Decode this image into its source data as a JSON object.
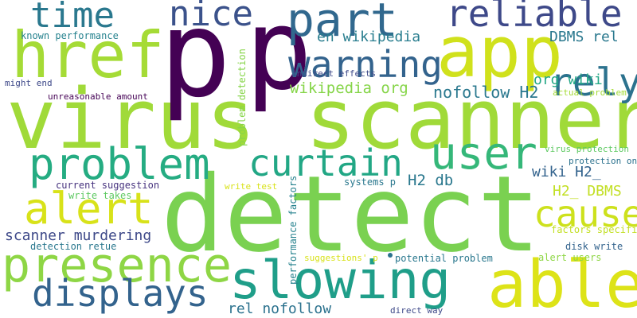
{
  "words": [
    {
      "text": "detect",
      "color": "#7ad151"
    },
    {
      "text": "virus scanner",
      "color": "#a0da39"
    },
    {
      "text": "p",
      "color": "#440154"
    },
    {
      "text": "p",
      "color": "#440154"
    },
    {
      "text": "app",
      "color": "#d0e11c"
    },
    {
      "text": "href",
      "color": "#a5db36"
    },
    {
      "text": "part",
      "color": "#31688e"
    },
    {
      "text": "presence",
      "color": "#8ed645"
    },
    {
      "text": "slowing",
      "color": "#1f9e89"
    },
    {
      "text": "able",
      "color": "#dde318"
    },
    {
      "text": "user",
      "color": "#35b779"
    },
    {
      "text": "problem",
      "color": "#25ac82"
    },
    {
      "text": "curtain",
      "color": "#22a785"
    },
    {
      "text": "warning",
      "color": "#33638d"
    },
    {
      "text": "reliable",
      "color": "#3e4989"
    },
    {
      "text": "alert",
      "color": "#d8e219"
    },
    {
      "text": "cause",
      "color": "#cde11d"
    },
    {
      "text": "displays",
      "color": "#33638d"
    },
    {
      "text": "nice",
      "color": "#3b528b"
    },
    {
      "text": "time",
      "color": "#2a788e"
    },
    {
      "text": "rely",
      "color": "#2c728e"
    },
    {
      "text": "wikipedia org",
      "color": "#86d549"
    },
    {
      "text": "nofollow H2",
      "color": "#2a788e"
    },
    {
      "text": "en wikipedia",
      "color": "#287d8e"
    },
    {
      "text": "org wiki",
      "color": "#22a785"
    },
    {
      "text": "DBMS rel",
      "color": "#2a788e"
    },
    {
      "text": "scanner murdering",
      "color": "#3e4989"
    },
    {
      "text": "H2 db",
      "color": "#2a788e"
    },
    {
      "text": "wiki H2_",
      "color": "#33638d"
    },
    {
      "text": "H2_ DBMS",
      "color": "#c2df23"
    },
    {
      "text": "rel nofollow",
      "color": "#2c728e"
    },
    {
      "text": "known performance",
      "color": "#26828e"
    },
    {
      "text": "indirect effects",
      "color": "#3e4989"
    },
    {
      "text": "might end",
      "color": "#3e4989"
    },
    {
      "text": "unreasonable amount",
      "color": "#440154"
    },
    {
      "text": "actual problem",
      "color": "#a5db36"
    },
    {
      "text": "virus protection",
      "color": "#5ec962"
    },
    {
      "text": "protection one",
      "color": "#2c728e"
    },
    {
      "text": "current suggestion",
      "color": "#46327e"
    },
    {
      "text": "write takes",
      "color": "#5ec962"
    },
    {
      "text": "write test",
      "color": "#d8e219"
    },
    {
      "text": "systems p",
      "color": "#2a788e"
    },
    {
      "text": "factors specific",
      "color": "#c2df23"
    },
    {
      "text": "detection retue",
      "color": "#2a788e"
    },
    {
      "text": "disk write",
      "color": "#33638d"
    },
    {
      "text": "alert users",
      "color": "#8ed645"
    },
    {
      "text": "suggestions' p",
      "color": "#d8e219"
    },
    {
      "text": "potential problem",
      "color": "#2a788e"
    },
    {
      "text": "direct way",
      "color": "#3e4989"
    },
    {
      "text": "problem detection",
      "color": "#86d549"
    },
    {
      "text": "performance factors",
      "color": "#26828e"
    }
  ]
}
